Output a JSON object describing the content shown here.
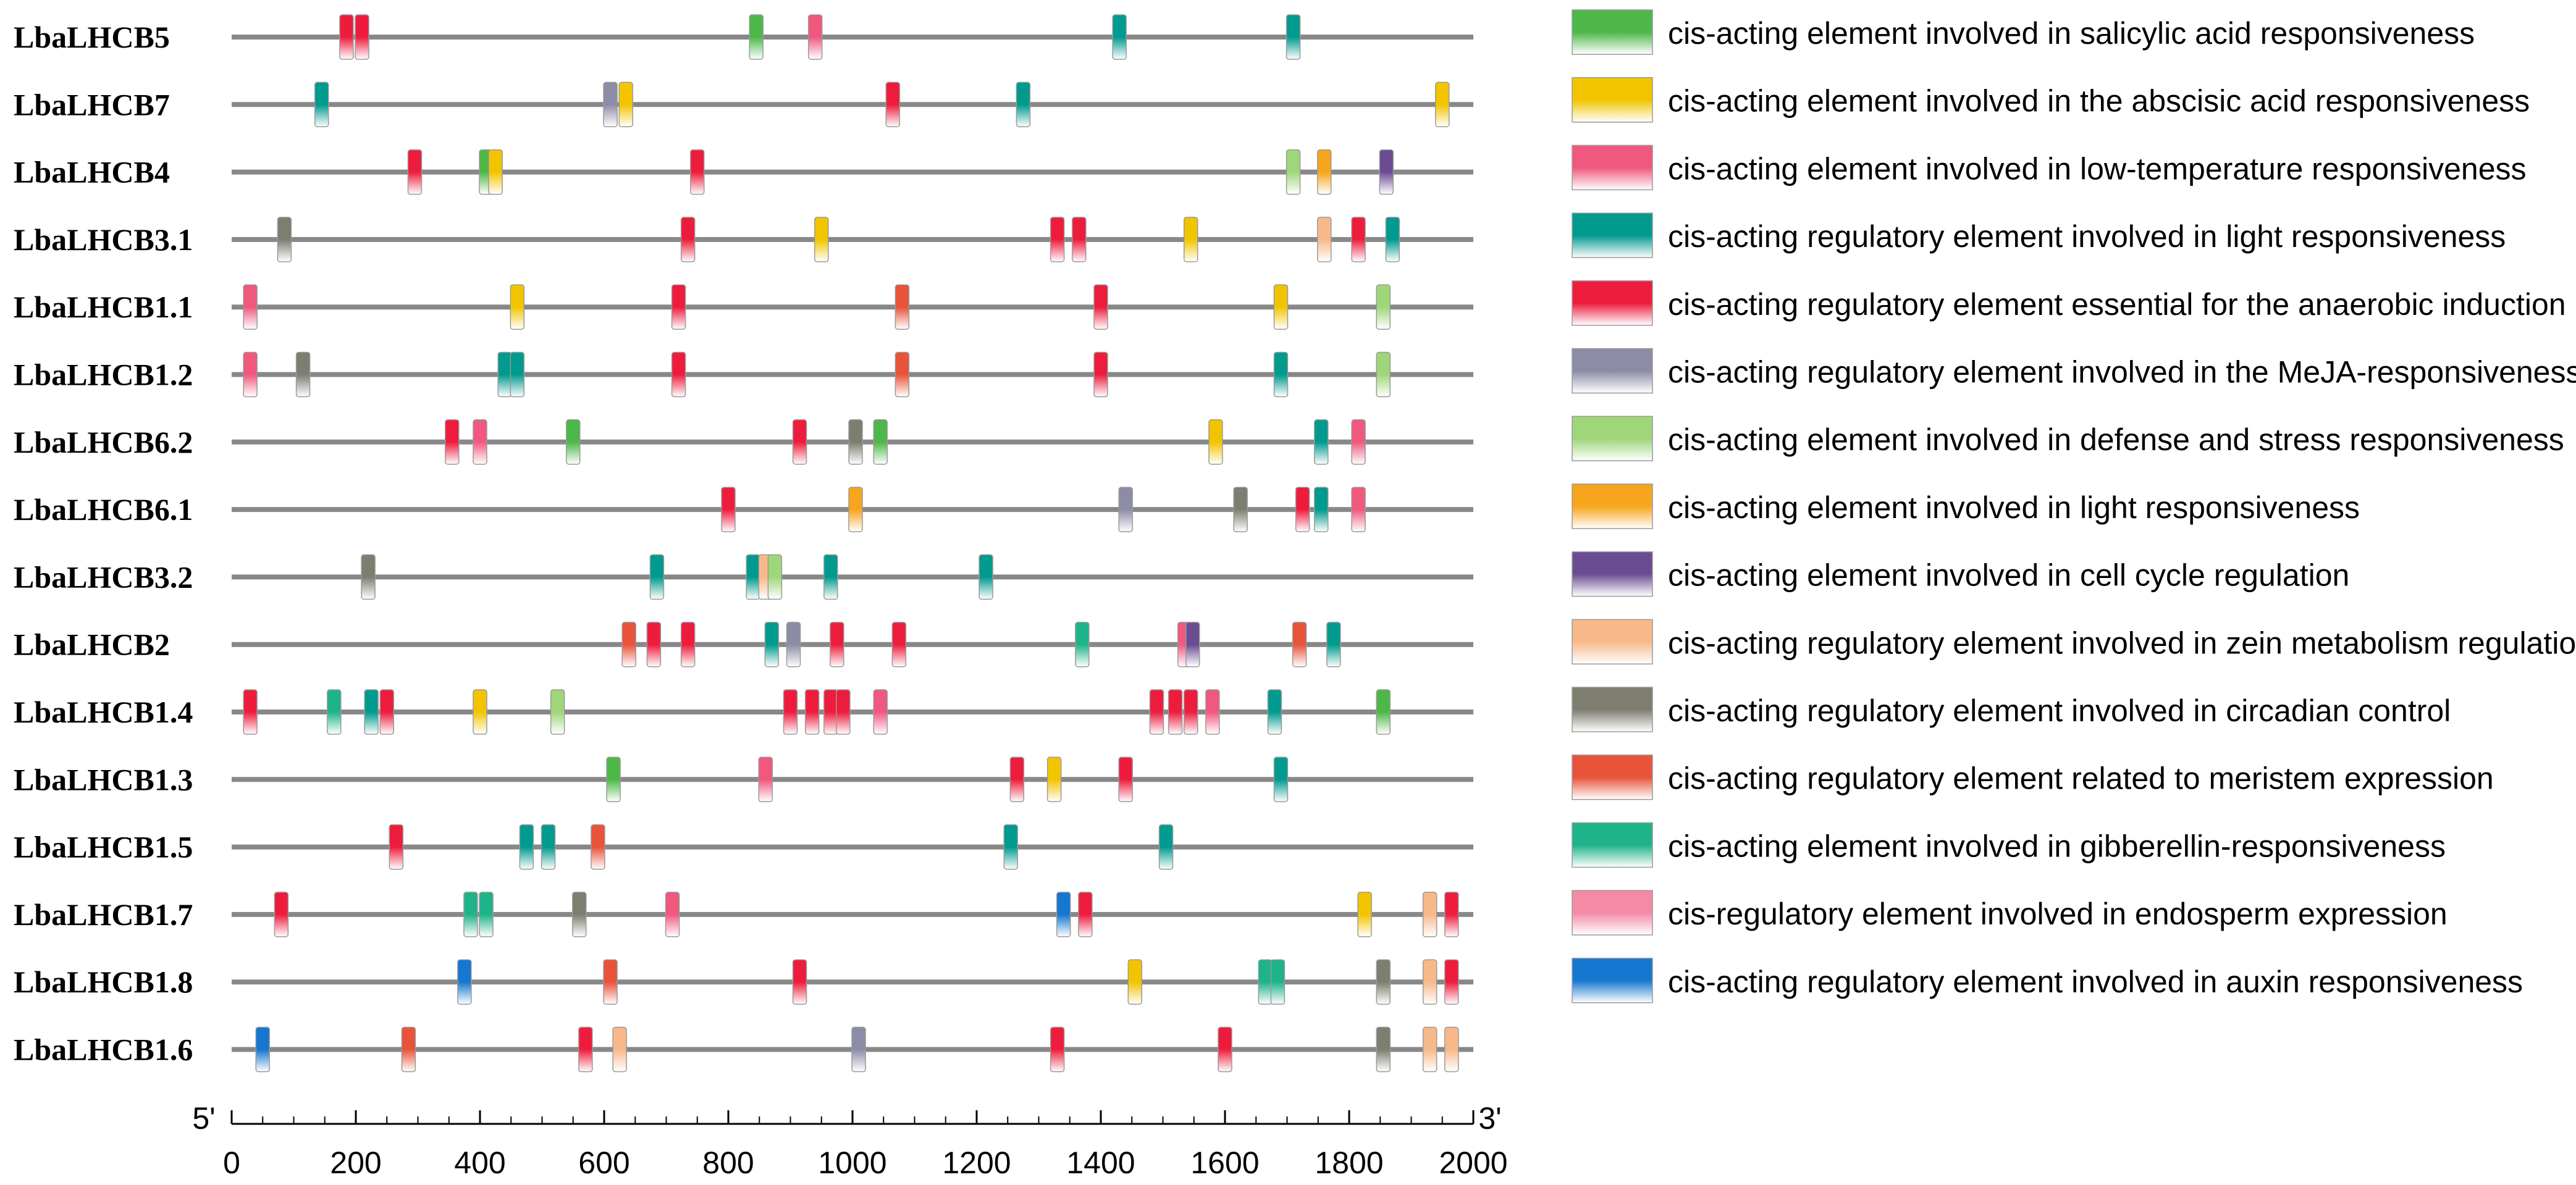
{
  "chart_data": {
    "type": "motif-map",
    "axis": {
      "min": 0,
      "max": 2000,
      "ticks": [
        0,
        200,
        400,
        600,
        800,
        1000,
        1200,
        1400,
        1600,
        1800,
        2000
      ],
      "start_label": "5'",
      "end_label": "3'"
    },
    "legend": [
      {
        "key": "salicylic",
        "label": "cis-acting element involved in salicylic acid responsiveness",
        "color": "#4db848"
      },
      {
        "key": "abscisic",
        "label": "cis-acting element involved in the abscisic acid responsiveness",
        "color": "#f2c400"
      },
      {
        "key": "lowtemp",
        "label": "cis-acting element involved in low-temperature responsiveness",
        "color": "#f0587e"
      },
      {
        "key": "light_reg",
        "label": "cis-acting regulatory element involved in light responsiveness",
        "color": "#009a8e"
      },
      {
        "key": "anaerobic",
        "label": "cis-acting regulatory element essential for the anaerobic induction",
        "color": "#ee1c3c"
      },
      {
        "key": "meja",
        "label": "cis-acting regulatory element involved in the MeJA-responsiveness",
        "color": "#8c8ca6"
      },
      {
        "key": "defense",
        "label": "cis-acting element involved in defense and stress responsiveness",
        "color": "#9fd67a"
      },
      {
        "key": "light_el",
        "label": "cis-acting element involved in light responsiveness",
        "color": "#f7a51c"
      },
      {
        "key": "cellcycle",
        "label": "cis-acting element involved in cell cycle regulation",
        "color": "#6a4c93"
      },
      {
        "key": "zein",
        "label": "cis-acting regulatory element involved in zein metabolism regulation",
        "color": "#f8b98a"
      },
      {
        "key": "circadian",
        "label": "cis-acting regulatory element involved in circadian control",
        "color": "#7d7d70"
      },
      {
        "key": "meristem",
        "label": "cis-acting regulatory element related to meristem expression",
        "color": "#e8533a"
      },
      {
        "key": "gibberellin",
        "label": "cis-acting element involved in gibberellin-responsiveness",
        "color": "#1fb38a"
      },
      {
        "key": "endosperm",
        "label": "cis-regulatory element involved in endosperm expression",
        "color": "#f48aa6"
      },
      {
        "key": "auxin",
        "label": "cis-acting regulatory element involved in auxin responsiveness",
        "color": "#1577d0"
      }
    ],
    "genes": [
      {
        "name": "LbaLHCB5",
        "motifs": [
          [
            185,
            "anaerobic"
          ],
          [
            210,
            "anaerobic"
          ],
          [
            845,
            "salicylic"
          ],
          [
            940,
            "lowtemp"
          ],
          [
            1430,
            "light_reg"
          ],
          [
            1710,
            "light_reg"
          ]
        ]
      },
      {
        "name": "LbaLHCB7",
        "motifs": [
          [
            145,
            "light_reg"
          ],
          [
            610,
            "meja"
          ],
          [
            635,
            "abscisic"
          ],
          [
            1065,
            "anaerobic"
          ],
          [
            1275,
            "light_reg"
          ],
          [
            1950,
            "abscisic"
          ]
        ]
      },
      {
        "name": "LbaLHCB4",
        "motifs": [
          [
            295,
            "anaerobic"
          ],
          [
            410,
            "salicylic"
          ],
          [
            425,
            "abscisic"
          ],
          [
            750,
            "anaerobic"
          ],
          [
            1710,
            "defense"
          ],
          [
            1760,
            "light_el"
          ],
          [
            1860,
            "cellcycle"
          ]
        ]
      },
      {
        "name": "LbaLHCB3.1",
        "motifs": [
          [
            85,
            "circadian"
          ],
          [
            735,
            "anaerobic"
          ],
          [
            950,
            "abscisic"
          ],
          [
            1330,
            "anaerobic"
          ],
          [
            1365,
            "anaerobic"
          ],
          [
            1545,
            "abscisic"
          ],
          [
            1760,
            "zein"
          ],
          [
            1815,
            "anaerobic"
          ],
          [
            1870,
            "light_reg"
          ]
        ]
      },
      {
        "name": "LbaLHCB1.1",
        "motifs": [
          [
            30,
            "lowtemp"
          ],
          [
            460,
            "abscisic"
          ],
          [
            720,
            "anaerobic"
          ],
          [
            1080,
            "meristem"
          ],
          [
            1400,
            "anaerobic"
          ],
          [
            1690,
            "abscisic"
          ],
          [
            1855,
            "defense"
          ]
        ]
      },
      {
        "name": "LbaLHCB1.2",
        "motifs": [
          [
            30,
            "lowtemp"
          ],
          [
            115,
            "circadian"
          ],
          [
            440,
            "light_reg"
          ],
          [
            460,
            "light_reg"
          ],
          [
            720,
            "anaerobic"
          ],
          [
            1080,
            "meristem"
          ],
          [
            1400,
            "anaerobic"
          ],
          [
            1690,
            "light_reg"
          ],
          [
            1855,
            "defense"
          ]
        ]
      },
      {
        "name": "LbaLHCB6.2",
        "motifs": [
          [
            355,
            "anaerobic"
          ],
          [
            400,
            "lowtemp"
          ],
          [
            550,
            "salicylic"
          ],
          [
            915,
            "anaerobic"
          ],
          [
            1005,
            "circadian"
          ],
          [
            1045,
            "salicylic"
          ],
          [
            1585,
            "abscisic"
          ],
          [
            1755,
            "light_reg"
          ],
          [
            1815,
            "lowtemp"
          ]
        ]
      },
      {
        "name": "LbaLHCB6.1",
        "motifs": [
          [
            800,
            "anaerobic"
          ],
          [
            1005,
            "light_el"
          ],
          [
            1440,
            "meja"
          ],
          [
            1625,
            "circadian"
          ],
          [
            1725,
            "anaerobic"
          ],
          [
            1755,
            "light_reg"
          ],
          [
            1815,
            "lowtemp"
          ]
        ]
      },
      {
        "name": "LbaLHCB3.2",
        "motifs": [
          [
            220,
            "circadian"
          ],
          [
            685,
            "light_reg"
          ],
          [
            840,
            "light_reg"
          ],
          [
            860,
            "zein"
          ],
          [
            875,
            "defense"
          ],
          [
            965,
            "light_reg"
          ],
          [
            1215,
            "light_reg"
          ]
        ]
      },
      {
        "name": "LbaLHCB2",
        "motifs": [
          [
            640,
            "meristem"
          ],
          [
            680,
            "anaerobic"
          ],
          [
            735,
            "anaerobic"
          ],
          [
            870,
            "light_reg"
          ],
          [
            905,
            "meja"
          ],
          [
            975,
            "anaerobic"
          ],
          [
            1075,
            "anaerobic"
          ],
          [
            1370,
            "gibberellin"
          ],
          [
            1535,
            "lowtemp"
          ],
          [
            1548,
            "cellcycle"
          ],
          [
            1720,
            "meristem"
          ],
          [
            1775,
            "light_reg"
          ]
        ]
      },
      {
        "name": "LbaLHCB1.4",
        "motifs": [
          [
            30,
            "anaerobic"
          ],
          [
            165,
            "gibberellin"
          ],
          [
            225,
            "light_reg"
          ],
          [
            250,
            "anaerobic"
          ],
          [
            400,
            "abscisic"
          ],
          [
            525,
            "defense"
          ],
          [
            900,
            "anaerobic"
          ],
          [
            935,
            "anaerobic"
          ],
          [
            965,
            "anaerobic"
          ],
          [
            985,
            "anaerobic"
          ],
          [
            1045,
            "lowtemp"
          ],
          [
            1490,
            "anaerobic"
          ],
          [
            1520,
            "anaerobic"
          ],
          [
            1545,
            "anaerobic"
          ],
          [
            1580,
            "lowtemp"
          ],
          [
            1680,
            "light_reg"
          ],
          [
            1855,
            "salicylic"
          ]
        ]
      },
      {
        "name": "LbaLHCB1.3",
        "motifs": [
          [
            615,
            "salicylic"
          ],
          [
            860,
            "lowtemp"
          ],
          [
            1265,
            "anaerobic"
          ],
          [
            1325,
            "abscisic"
          ],
          [
            1440,
            "anaerobic"
          ],
          [
            1690,
            "light_reg"
          ]
        ]
      },
      {
        "name": "LbaLHCB1.5",
        "motifs": [
          [
            265,
            "anaerobic"
          ],
          [
            475,
            "light_reg"
          ],
          [
            510,
            "light_reg"
          ],
          [
            590,
            "meristem"
          ],
          [
            1255,
            "light_reg"
          ],
          [
            1505,
            "light_reg"
          ]
        ]
      },
      {
        "name": "LbaLHCB1.7",
        "motifs": [
          [
            80,
            "anaerobic"
          ],
          [
            385,
            "gibberellin"
          ],
          [
            410,
            "gibberellin"
          ],
          [
            560,
            "circadian"
          ],
          [
            710,
            "lowtemp"
          ],
          [
            1340,
            "auxin"
          ],
          [
            1375,
            "anaerobic"
          ],
          [
            1825,
            "abscisic"
          ],
          [
            1930,
            "zein"
          ],
          [
            1965,
            "anaerobic"
          ]
        ]
      },
      {
        "name": "LbaLHCB1.8",
        "motifs": [
          [
            375,
            "auxin"
          ],
          [
            610,
            "meristem"
          ],
          [
            915,
            "anaerobic"
          ],
          [
            1455,
            "abscisic"
          ],
          [
            1665,
            "gibberellin"
          ],
          [
            1685,
            "gibberellin"
          ],
          [
            1855,
            "circadian"
          ],
          [
            1930,
            "zein"
          ],
          [
            1965,
            "anaerobic"
          ]
        ]
      },
      {
        "name": "LbaLHCB1.6",
        "motifs": [
          [
            50,
            "auxin"
          ],
          [
            285,
            "meristem"
          ],
          [
            570,
            "anaerobic"
          ],
          [
            625,
            "zein"
          ],
          [
            1010,
            "meja"
          ],
          [
            1330,
            "anaerobic"
          ],
          [
            1600,
            "anaerobic"
          ],
          [
            1855,
            "circadian"
          ],
          [
            1930,
            "zein"
          ],
          [
            1965,
            "zein"
          ]
        ]
      }
    ]
  }
}
